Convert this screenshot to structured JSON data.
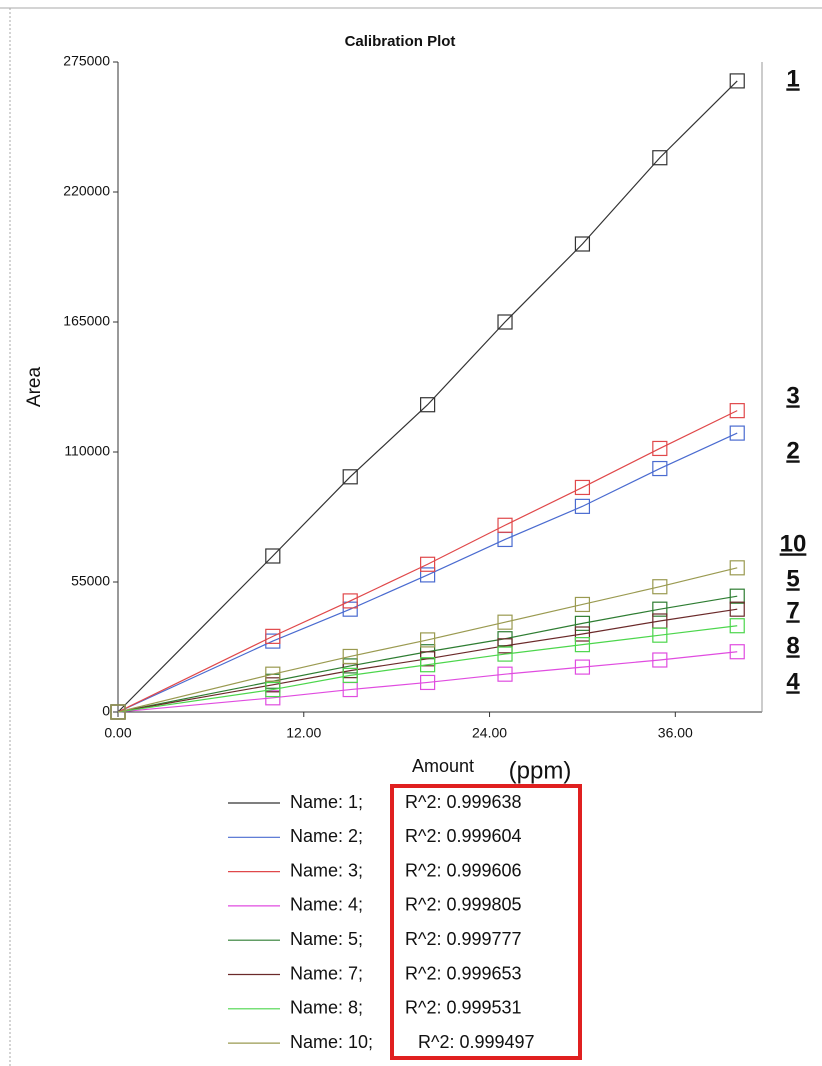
{
  "chart_data": {
    "type": "line",
    "title": "Calibration Plot",
    "xlabel": "Amount",
    "xlabel_unit": "(ppm)",
    "ylabel": "Area",
    "x": [
      0,
      10,
      15,
      20,
      25,
      30,
      35,
      40
    ],
    "xlim": [
      0,
      41.6
    ],
    "xticks": [
      {
        "value": 0,
        "label": "0.00"
      },
      {
        "value": 12,
        "label": "12.00"
      },
      {
        "value": 24,
        "label": "24.00"
      },
      {
        "value": 36,
        "label": "36.00"
      }
    ],
    "ylim": [
      0,
      275000
    ],
    "yticks": [
      0,
      55000,
      110000,
      165000,
      220000,
      275000
    ],
    "series": [
      {
        "name": "Name: 1;",
        "fit": "R^2: 0.999638",
        "color": "#333333",
        "values": [
          0,
          66000,
          99500,
          130000,
          165000,
          198000,
          234500,
          267000
        ]
      },
      {
        "name": "Name: 2;",
        "fit": "R^2: 0.999604",
        "color": "#4a6bd0",
        "values": [
          0,
          30000,
          43500,
          58000,
          73000,
          87000,
          103000,
          118000
        ]
      },
      {
        "name": "Name: 3;",
        "fit": "R^2: 0.999606",
        "color": "#e0484a",
        "values": [
          0,
          32000,
          47000,
          62500,
          79000,
          95000,
          111500,
          127500
        ]
      },
      {
        "name": "Name: 4;",
        "fit": "R^2: 0.999805",
        "color": "#e04ce0",
        "values": [
          0,
          6000,
          9500,
          12500,
          16000,
          19000,
          22000,
          25500
        ]
      },
      {
        "name": "Name: 5;",
        "fit": "R^2: 0.999777",
        "color": "#2e7d32",
        "values": [
          0,
          13000,
          19500,
          25500,
          31000,
          37500,
          43500,
          49000
        ]
      },
      {
        "name": "Name: 7;",
        "fit": "R^2: 0.999653",
        "color": "#6b2a2a",
        "values": [
          0,
          11500,
          17500,
          22500,
          28000,
          33000,
          38500,
          43500
        ]
      },
      {
        "name": "Name: 8;",
        "fit": "R^2: 0.999531",
        "color": "#4cd64c",
        "values": [
          0,
          9500,
          15500,
          20000,
          24500,
          28500,
          32500,
          36500
        ]
      },
      {
        "name": "Name: 10;",
        "fit": "R^2: 0.999497",
        "color": "#9a9a50",
        "values": [
          0,
          16000,
          23500,
          30500,
          38000,
          45500,
          53000,
          61000
        ]
      }
    ],
    "annotations": [
      "1",
      "3",
      "2",
      "10",
      "5",
      "7",
      "8",
      "4"
    ]
  }
}
